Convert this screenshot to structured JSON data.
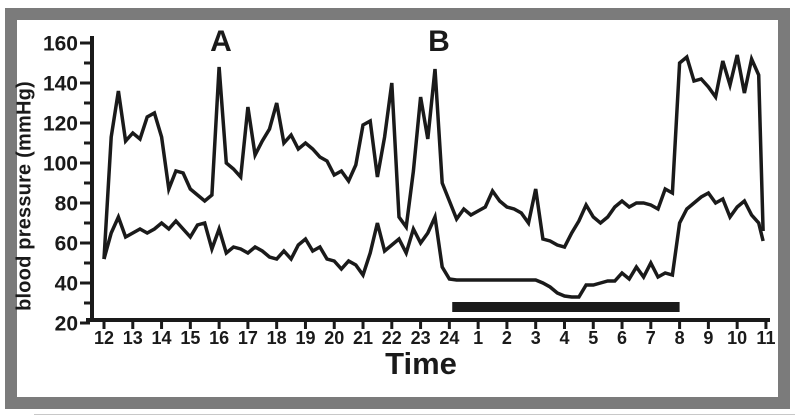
{
  "figure": {
    "ylabel": "blood pressure (mmHg)",
    "xlabel": "Time"
  },
  "colors": {
    "ink": "#1a1a1a",
    "frame_gray": "#7b7b7b",
    "background": "#ffffff"
  },
  "chart_data": {
    "type": "line",
    "title": "",
    "xlabel": "Time",
    "ylabel": "blood pressure (mmHg)",
    "ylim": [
      20,
      160
    ],
    "y_ticks": [
      20,
      40,
      60,
      80,
      100,
      120,
      140,
      160
    ],
    "y_minor_ticks": [
      30,
      50,
      70,
      90,
      110,
      130,
      150
    ],
    "x_tick_hours": [
      12,
      13,
      14,
      15,
      16,
      17,
      18,
      19,
      20,
      21,
      22,
      23,
      24,
      25,
      26,
      27,
      28,
      29,
      30,
      31,
      32,
      33,
      34,
      35
    ],
    "x_tick_labels": [
      "12",
      "13",
      "14",
      "15",
      "16",
      "17",
      "18",
      "19",
      "20",
      "21",
      "22",
      "23",
      "24",
      "1",
      "2",
      "3",
      "4",
      "5",
      "6",
      "7",
      "8",
      "9",
      "10",
      "11"
    ],
    "grid": false,
    "legend": "none",
    "annotations": [
      {
        "text": "A",
        "hour": 16.05,
        "value": 155
      },
      {
        "text": "B",
        "hour": 23.6,
        "value": 155
      }
    ],
    "sleep_bar": {
      "start_hour": 24.1,
      "end_hour": 32.0,
      "center_value": 28,
      "thickness_px": 10
    },
    "x_hours": [
      12,
      12.25,
      12.5,
      12.75,
      13,
      13.25,
      13.5,
      13.75,
      14,
      14.25,
      14.5,
      14.75,
      15,
      15.25,
      15.5,
      15.75,
      16,
      16.25,
      16.5,
      16.75,
      17,
      17.25,
      17.5,
      17.75,
      18,
      18.25,
      18.5,
      18.75,
      19,
      19.25,
      19.5,
      19.75,
      20,
      20.25,
      20.5,
      20.75,
      21,
      21.25,
      21.5,
      21.75,
      22,
      22.25,
      22.5,
      22.75,
      23,
      23.25,
      23.5,
      23.75,
      24,
      24.25,
      24.5,
      24.75,
      25,
      25.25,
      25.5,
      25.75,
      26,
      26.25,
      26.5,
      26.75,
      27,
      27.25,
      27.5,
      27.75,
      28,
      28.25,
      28.5,
      28.75,
      29,
      29.25,
      29.5,
      29.75,
      30,
      30.25,
      30.5,
      30.75,
      31,
      31.25,
      31.5,
      31.75,
      32,
      32.25,
      32.5,
      32.75,
      33,
      33.25,
      33.5,
      33.75,
      34,
      34.25,
      34.5,
      34.75,
      34.9
    ],
    "series": [
      {
        "name": "upper-trace-systolic",
        "values": [
          52,
          113,
          136,
          111,
          115,
          112,
          123,
          125,
          113,
          87,
          96,
          95,
          87,
          84,
          81,
          84,
          148,
          100,
          97,
          93,
          128,
          104,
          111,
          117,
          130,
          110,
          114,
          107,
          110,
          107,
          103,
          101,
          94,
          96,
          91,
          99,
          119,
          121,
          93,
          113,
          140,
          73,
          68,
          96,
          133,
          112,
          147,
          90,
          81,
          72,
          77,
          74,
          76,
          78,
          86,
          81,
          78,
          77,
          75,
          70,
          87,
          62,
          61,
          59,
          58,
          65,
          71,
          79,
          73,
          70,
          73,
          78,
          81,
          78,
          80,
          80,
          79,
          77,
          87,
          85,
          150,
          153,
          141,
          142,
          138,
          133,
          151,
          139,
          154,
          135,
          152,
          144,
          66
        ]
      },
      {
        "name": "lower-trace-diastolic",
        "values": [
          52,
          65,
          73,
          63,
          65,
          67,
          65,
          67,
          70,
          67,
          71,
          67,
          63,
          69,
          70,
          57,
          67,
          55,
          58,
          57,
          55,
          58,
          56,
          53,
          52,
          56,
          52,
          59,
          62,
          56,
          58,
          52,
          51,
          47,
          51,
          49,
          44,
          55,
          70,
          56,
          59,
          62,
          55,
          67,
          60,
          65,
          73,
          48,
          42,
          41.5,
          41.5,
          41.5,
          41.5,
          41.5,
          41.5,
          41.5,
          41.5,
          41.5,
          41.5,
          41.5,
          41.5,
          40,
          38,
          35,
          33.5,
          33,
          33,
          39,
          39,
          40,
          41,
          41,
          45,
          42,
          48,
          43,
          50,
          43,
          45,
          44,
          70,
          77,
          80,
          83,
          85,
          80,
          82,
          73,
          78,
          81,
          74,
          70,
          61
        ]
      }
    ]
  }
}
